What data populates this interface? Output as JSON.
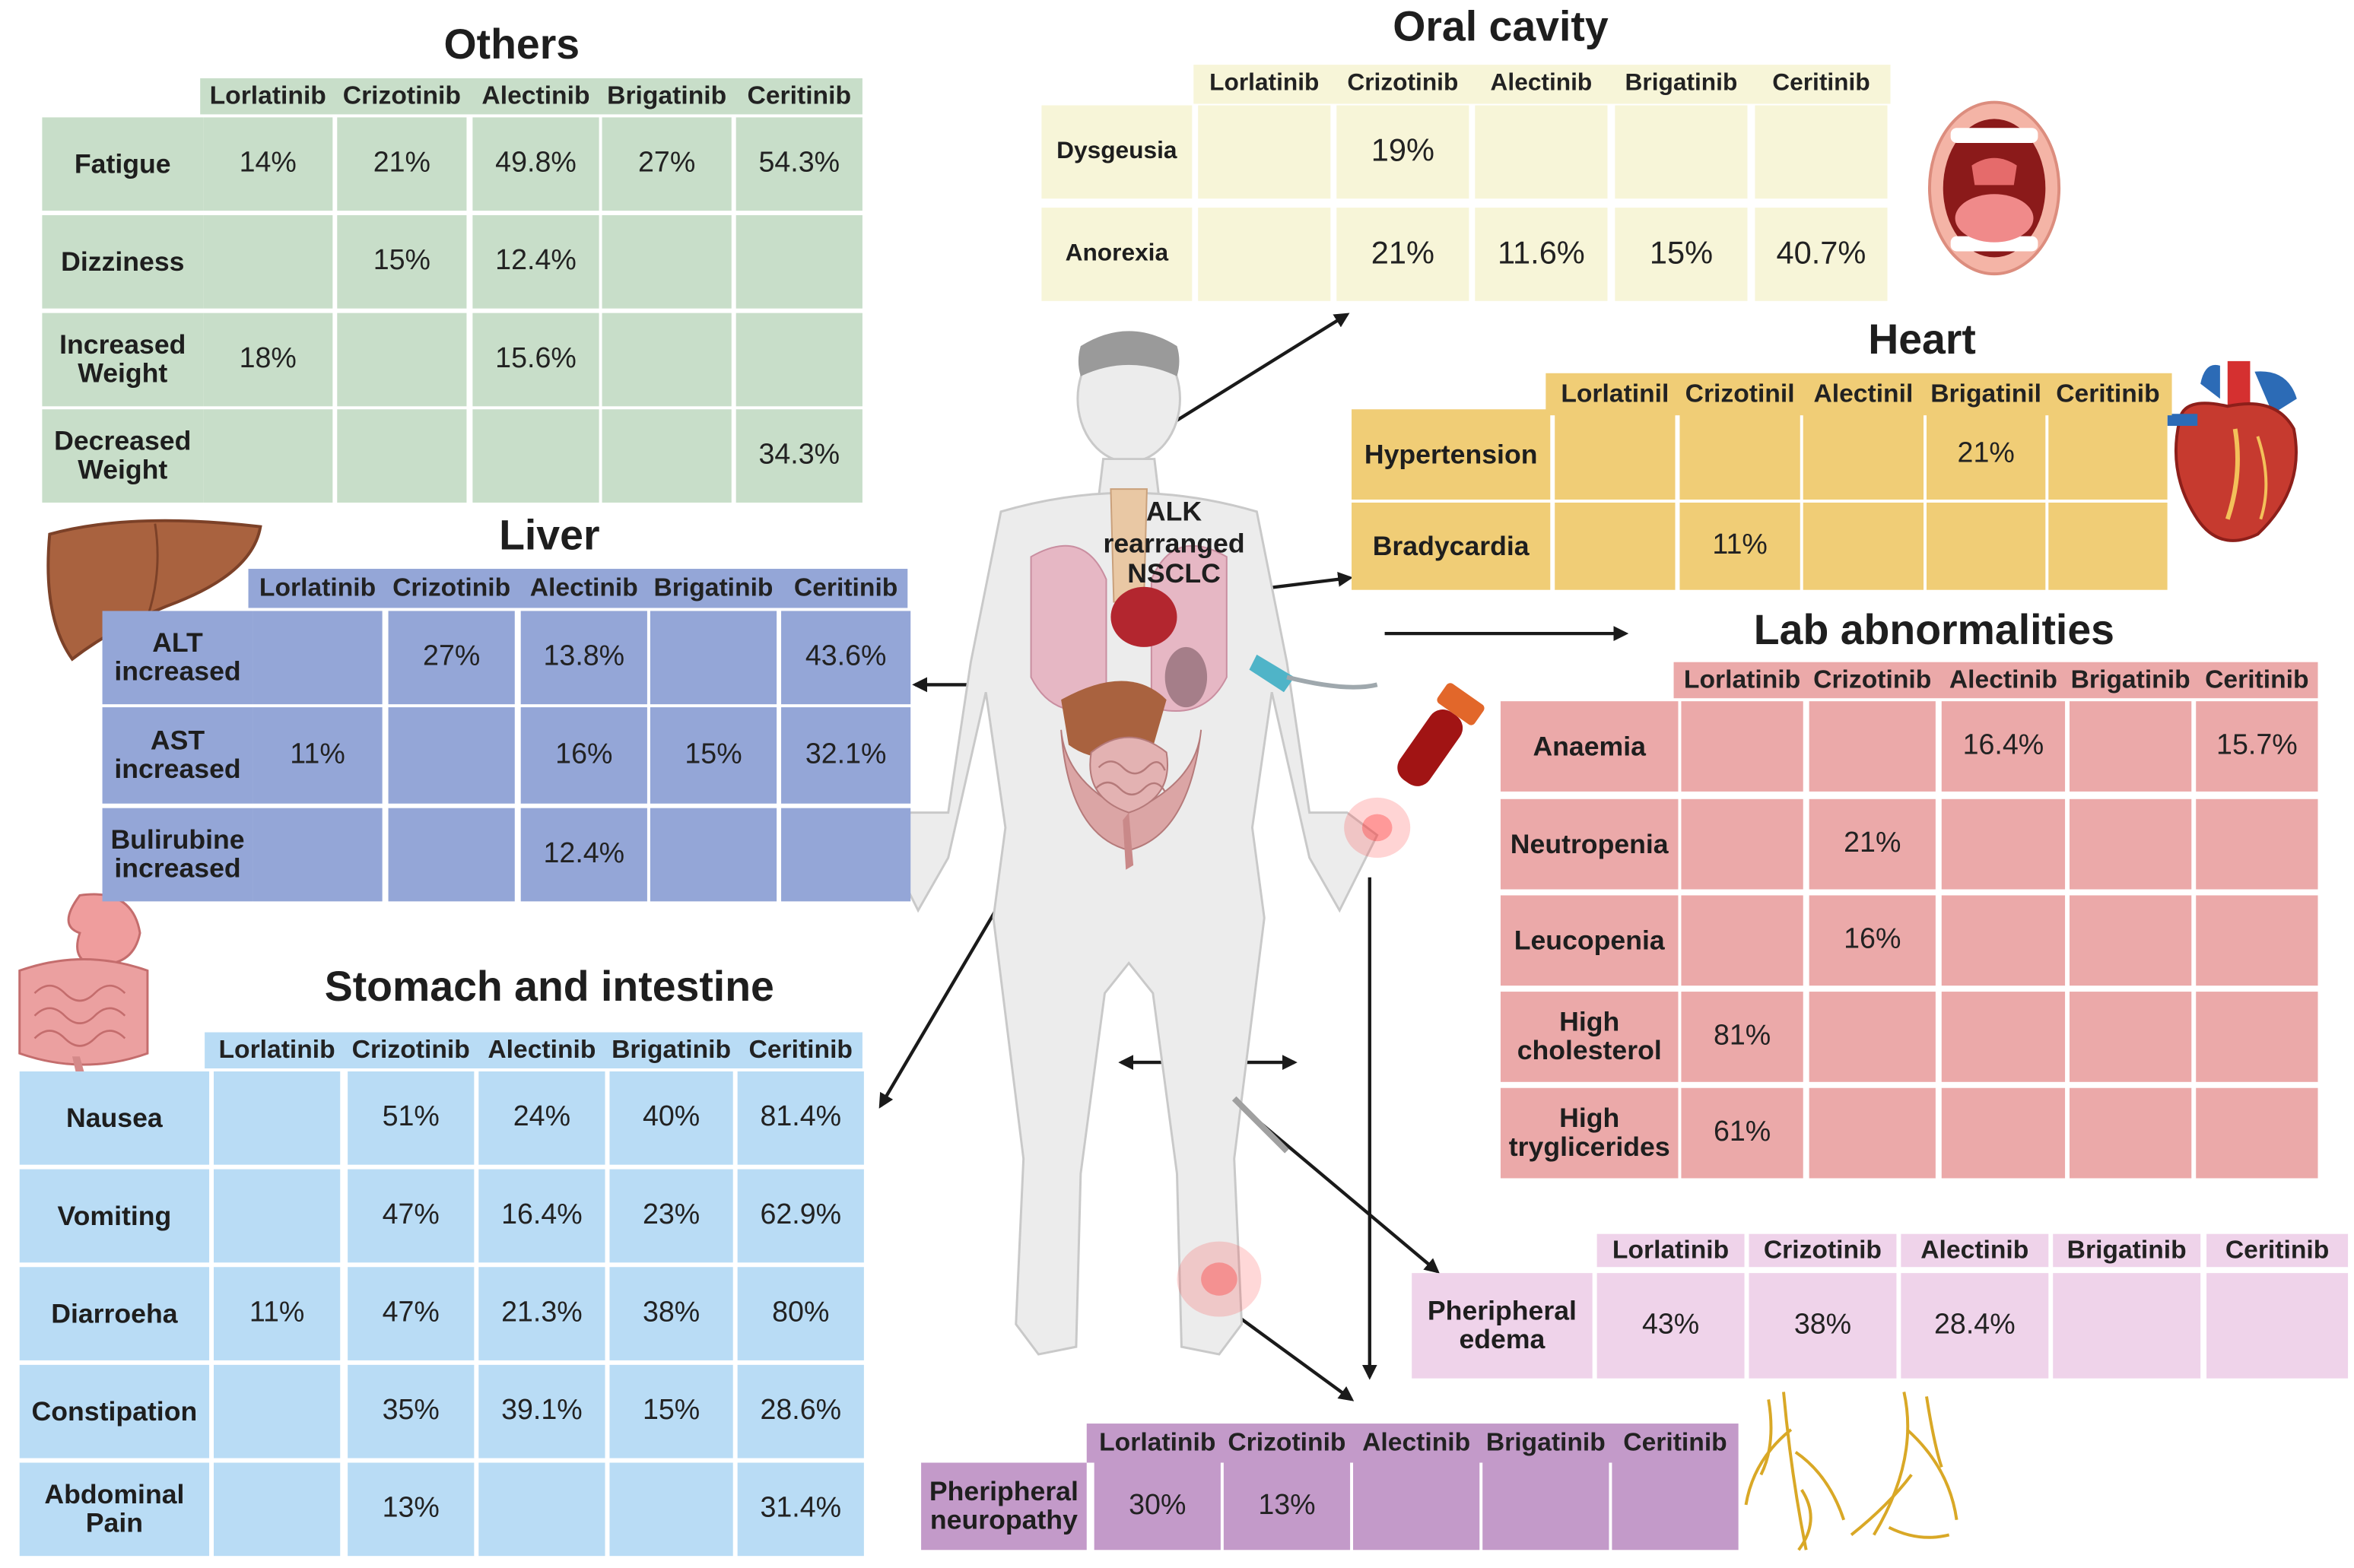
{
  "drugs": [
    "Lorlatinib",
    "Crizotinib",
    "Alectinib",
    "Brigatinib",
    "Ceritinib"
  ],
  "center_label": [
    "ALK",
    "rearranged",
    "NSCLC"
  ],
  "sections": [
    {
      "title": "Others",
      "header_labels": [
        "Lorlatinib",
        "Crizotinib",
        "Alectinib",
        "Brigatinib",
        "Ceritinib"
      ],
      "color": "#c8dec9",
      "rows": [
        {
          "label": "Fatigue",
          "values": [
            "14%",
            "21%",
            "49.8%",
            "27%",
            "54.3%"
          ]
        },
        {
          "label": "Dizziness",
          "values": [
            "",
            "15%",
            "12.4%",
            "",
            ""
          ]
        },
        {
          "label": "Increased Weight",
          "values": [
            "18%",
            "",
            "15.6%",
            "",
            ""
          ]
        },
        {
          "label": "Decreased Weight",
          "values": [
            "",
            "",
            "",
            "",
            "34.3%"
          ]
        }
      ]
    },
    {
      "title": "Oral cavity",
      "header_labels": [
        "Lorlatinib",
        "Crizotinib",
        "Alectinib",
        "Brigatinib",
        "Ceritinib"
      ],
      "color": "#f7f5d8",
      "rows": [
        {
          "label": "Dysgeusia",
          "values": [
            "",
            "19%",
            "",
            "",
            ""
          ]
        },
        {
          "label": "Anorexia",
          "values": [
            "",
            "21%",
            "11.6%",
            "15%",
            "40.7%"
          ]
        }
      ]
    },
    {
      "title": "Heart",
      "header_labels": [
        "Lorlatinil",
        "Crizotinil",
        "Alectinil",
        "Brigatinil",
        "Ceritinib"
      ],
      "color": "#f0cd76",
      "rows": [
        {
          "label": "Hypertension",
          "values": [
            "",
            "",
            "",
            "21%",
            ""
          ]
        },
        {
          "label": "Bradycardia",
          "values": [
            "",
            "11%",
            "",
            "",
            ""
          ]
        }
      ]
    },
    {
      "title": "Liver",
      "header_labels": [
        "Lorlatinib",
        "Crizotinib",
        "Alectinib",
        "Brigatinib",
        "Ceritinib"
      ],
      "color": "#94a6d7",
      "rows": [
        {
          "label": "ALT increased",
          "values": [
            "",
            "27%",
            "13.8%",
            "",
            "43.6%"
          ]
        },
        {
          "label": "AST increased",
          "values": [
            "11%",
            "",
            "16%",
            "15%",
            "32.1%"
          ]
        },
        {
          "label": "Bulirubine increased",
          "values": [
            "",
            "",
            "12.4%",
            "",
            ""
          ]
        }
      ]
    },
    {
      "title": "Lab abnormalities",
      "header_labels": [
        "Lorlatinib",
        "Crizotinib",
        "Alectinib",
        "Brigatinib",
        "Ceritinib"
      ],
      "color": "#eba9a9",
      "rows": [
        {
          "label": "Anaemia",
          "values": [
            "",
            "",
            "16.4%",
            "",
            "15.7%"
          ]
        },
        {
          "label": "Neutropenia",
          "values": [
            "",
            "21%",
            "",
            "",
            ""
          ]
        },
        {
          "label": "Leucopenia",
          "values": [
            "",
            "16%",
            "",
            "",
            ""
          ]
        },
        {
          "label": "High cholesterol",
          "values": [
            "81%",
            "",
            "",
            "",
            ""
          ]
        },
        {
          "label": "High tryglicerides",
          "values": [
            "61%",
            "",
            "",
            "",
            ""
          ]
        }
      ]
    },
    {
      "title": "Stomach and intestine",
      "header_labels": [
        "Lorlatinib",
        "Crizotinib",
        "Alectinib",
        "Brigatinib",
        "Ceritinib"
      ],
      "color": "#b9dcf5",
      "rows": [
        {
          "label": "Nausea",
          "values": [
            "",
            "51%",
            "24%",
            "40%",
            "81.4%"
          ]
        },
        {
          "label": "Vomiting",
          "values": [
            "",
            "47%",
            "16.4%",
            "23%",
            "62.9%"
          ]
        },
        {
          "label": "Diarroeha",
          "values": [
            "11%",
            "47%",
            "21.3%",
            "38%",
            "80%"
          ]
        },
        {
          "label": "Constipation",
          "values": [
            "",
            "35%",
            "39.1%",
            "15%",
            "28.6%"
          ]
        },
        {
          "label": "Abdominal Pain",
          "values": [
            "",
            "13%",
            "",
            "",
            "31.4%"
          ]
        }
      ]
    },
    {
      "title": "",
      "header_labels": [
        "Lorlatinib",
        "Crizotinib",
        "Alectinib",
        "Brigatinib",
        "Ceritinib"
      ],
      "color": "#efd3ea",
      "rows": [
        {
          "label": "Pheripheral edema",
          "values": [
            "43%",
            "38%",
            "28.4%",
            "",
            ""
          ]
        }
      ]
    },
    {
      "title": "",
      "header_labels": [
        "Lorlatinib",
        "Crizotinib",
        "Alectinib",
        "Brigatinib",
        "Ceritinib"
      ],
      "color": "#c39ac9",
      "rows": [
        {
          "label": "Pheripheral neuropathy",
          "values": [
            "30%",
            "13%",
            "",
            "",
            ""
          ]
        }
      ]
    }
  ],
  "icons": {
    "human_body": "human-body-icon",
    "liver": "liver-icon",
    "stomach": "stomach-intestine-icon",
    "mouth": "mouth-icon",
    "heart": "heart-icon",
    "blood_tube": "blood-sample-icon",
    "nerves": "nerve-icon"
  }
}
